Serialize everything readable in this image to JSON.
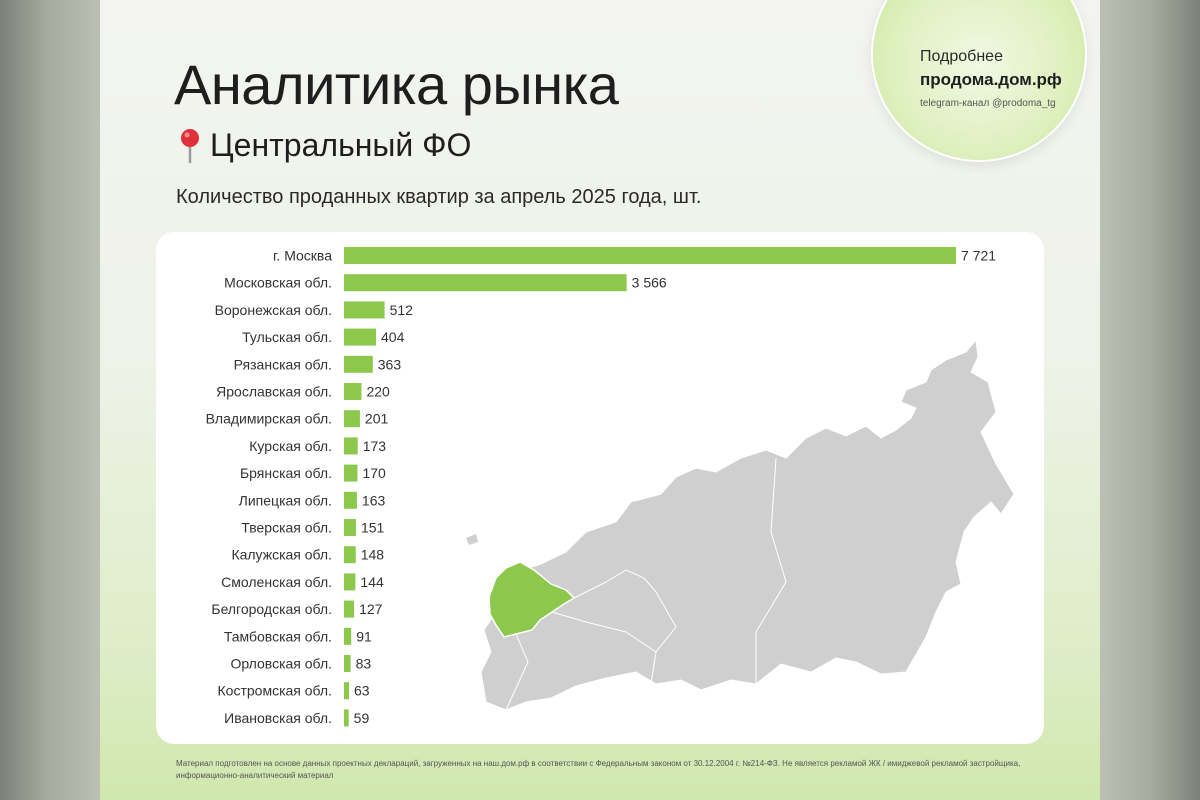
{
  "header": {
    "title": "Аналитика рынка",
    "region": "Центральный ФО"
  },
  "badge": {
    "line1": "Подробнее",
    "line2": "продома.дом.рф",
    "line3": "telegram-канал @prodoma_tg"
  },
  "colors": {
    "bar": "#8cc84b",
    "map_gray": "#cfcfcf",
    "map_highlight": "#8cc84b"
  },
  "chart_data": {
    "type": "bar",
    "orientation": "horizontal",
    "title": "Количество проданных квартир за апрель 2025 года, шт.",
    "categories": [
      "г. Москва",
      "Московская обл.",
      "Воронежская обл.",
      "Тульская обл.",
      "Рязанская обл.",
      "Ярославская обл.",
      "Владимирская обл.",
      "Курская обл.",
      "Брянская обл.",
      "Липецкая обл.",
      "Тверская обл.",
      "Калужская обл.",
      "Смоленская обл.",
      "Белгородская обл.",
      "Тамбовская обл.",
      "Орловская обл.",
      "Костромская обл.",
      "Ивановская обл."
    ],
    "values": [
      7721,
      3566,
      512,
      404,
      363,
      220,
      201,
      173,
      170,
      163,
      151,
      148,
      144,
      127,
      91,
      83,
      63,
      59
    ],
    "value_labels": [
      "7 721",
      "3 566",
      "512",
      "404",
      "363",
      "220",
      "201",
      "173",
      "170",
      "163",
      "151",
      "148",
      "144",
      "127",
      "91",
      "83",
      "63",
      "59"
    ],
    "xlim": [
      0,
      7721
    ],
    "grid": false
  },
  "footer": {
    "note": "Материал подготовлен на основе данных проектных деклараций, загруженных на наш.дом.рф в соответствии с Федеральным законом от 30.12.2004 г. №214-ФЗ. Не является рекламой ЖК / имиджевой рекламой застройщика, информационно-аналитический материал"
  }
}
